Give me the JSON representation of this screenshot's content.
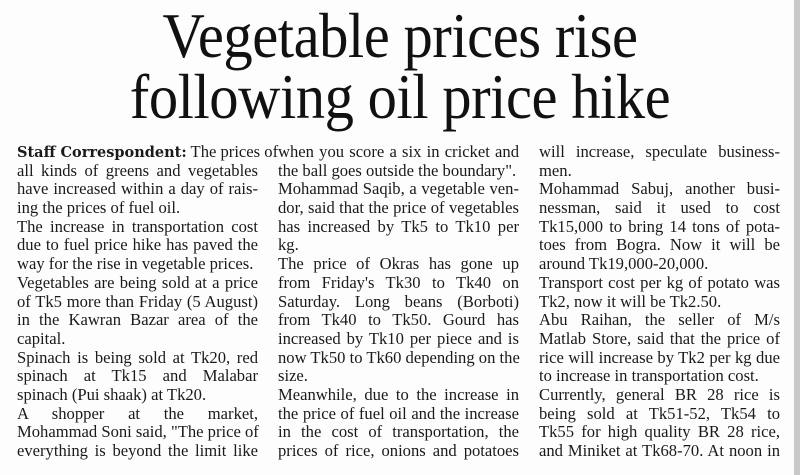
{
  "headline": [
    "Vegetable prices rise",
    "following oil price hike"
  ],
  "byline": "Staff Correspondent:",
  "columns": [
    [
      {
        "t": " The prices of"
      },
      {
        "t": "all kinds of greens and vegetables"
      },
      {
        "t": "have increased within a day of rais-"
      },
      {
        "t": "ing the prices of fuel oil.",
        "end": true
      },
      {
        "t": "The increase in transportation cost"
      },
      {
        "t": "due to fuel price hike has paved the"
      },
      {
        "t": "way for the rise in vegetable prices.",
        "end": true
      },
      {
        "t": "Vegetables are being sold at a price"
      },
      {
        "t": "of Tk5 more than Friday (5 August)"
      },
      {
        "t": "in the Kawran Bazar area of the"
      },
      {
        "t": "capital.",
        "end": true
      },
      {
        "t": "Spinach is being sold at Tk20, red"
      },
      {
        "t": "spinach at Tk15 and Malabar"
      },
      {
        "t": "spinach (Pui shaak) at Tk20.",
        "end": true
      },
      {
        "t": "A shopper at the market,"
      },
      {
        "t": "Mohammad Soni said, \"The price of"
      },
      {
        "t": "everything is beyond the limit like"
      }
    ],
    [
      {
        "t": "when you score a six in cricket and"
      },
      {
        "t": "the ball goes outside the boundary\".",
        "end": true
      },
      {
        "t": "Mohammad Saqib, a vegetable ven-"
      },
      {
        "t": "dor, said that the price of vegetables"
      },
      {
        "t": "has increased by Tk5 to Tk10 per"
      },
      {
        "t": "kg.",
        "end": true
      },
      {
        "t": "The price of Okras has gone up"
      },
      {
        "t": "from Friday's Tk30 to Tk40 on"
      },
      {
        "t": "Saturday. Long beans (Borboti)"
      },
      {
        "t": "from Tk40 to Tk50. Gourd has"
      },
      {
        "t": "increased by Tk10 per piece and is"
      },
      {
        "t": "now Tk50 to Tk60 depending on the"
      },
      {
        "t": "size.",
        "end": true
      },
      {
        "t": "Meanwhile, due to the increase in"
      },
      {
        "t": "the price of fuel oil and the increase"
      },
      {
        "t": "in the cost of transportation, the"
      },
      {
        "t": "prices of rice, onions and potatoes"
      }
    ],
    [
      {
        "t": "will increase, speculate business-"
      },
      {
        "t": "men.",
        "end": true
      },
      {
        "t": "Mohammad Sabuj, another busi-"
      },
      {
        "t": "nessman, said it used to cost"
      },
      {
        "t": "Tk15,000 to bring 14 tons of pota-"
      },
      {
        "t": "toes from Bogra. Now it will be"
      },
      {
        "t": "around Tk19,000-20,000.",
        "end": true
      },
      {
        "t": "Transport cost per kg of potato was"
      },
      {
        "t": "Tk2, now it will be Tk2.50.",
        "end": true
      },
      {
        "t": "Abu Raihan, the seller of M/s"
      },
      {
        "t": "Matlab Store, said that the price of"
      },
      {
        "t": "rice will increase by Tk2 per kg due"
      },
      {
        "t": "to increase in transportation cost.",
        "end": true
      },
      {
        "t": "Currently, general BR 28 rice is"
      },
      {
        "t": "being sold at Tk51-52, Tk54 to"
      },
      {
        "t": "Tk55 for high quality BR 28 rice,"
      },
      {
        "t": "and Miniket at Tk68-70. At noon in"
      }
    ]
  ]
}
